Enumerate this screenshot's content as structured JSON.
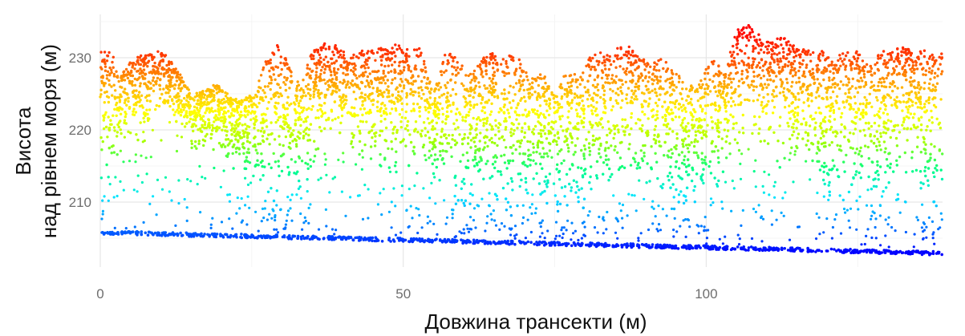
{
  "chart_data": {
    "type": "scatter",
    "title": "",
    "xlabel": "Довжина трансекти (м)",
    "ylabel_lines": [
      "Висота",
      "над рівнем моря (м)"
    ],
    "xlim": [
      0,
      139
    ],
    "ylim": [
      201,
      236
    ],
    "x_ticks": [
      0,
      50,
      100
    ],
    "y_ticks": [
      210,
      220,
      230
    ],
    "grid": true,
    "legend": "none",
    "colormap": [
      "#0000ff",
      "#0080ff",
      "#00e5ff",
      "#00ff80",
      "#aaff00",
      "#ffff00",
      "#ffaa00",
      "#ff4000",
      "#ff0000"
    ],
    "color_range": [
      203,
      234
    ],
    "ground": {
      "x": [
        0,
        139
      ],
      "y": [
        205.8,
        202.9
      ]
    },
    "canopy_top": {
      "x": [
        0,
        2,
        3,
        5,
        7,
        9,
        11,
        13,
        15,
        17,
        19,
        21,
        23,
        25,
        27,
        29,
        31,
        33,
        35,
        37,
        39,
        41,
        43,
        45,
        47,
        49,
        51,
        53,
        55,
        57,
        59,
        61,
        63,
        65,
        67,
        69,
        71,
        73,
        75,
        77,
        79,
        81,
        83,
        85,
        87,
        89,
        91,
        93,
        95,
        97,
        99,
        101,
        103,
        105,
        107,
        109,
        111,
        113,
        115,
        117,
        119,
        121,
        123,
        125,
        127,
        129,
        131,
        133,
        135,
        137,
        139
      ],
      "y": [
        231.5,
        231,
        227,
        229.5,
        230.5,
        231,
        230.5,
        228,
        225,
        225.5,
        226.5,
        225,
        224,
        225,
        229,
        232,
        230,
        226,
        231,
        232,
        232,
        230,
        231,
        231,
        231.5,
        232,
        231,
        231.5,
        225,
        231,
        230,
        228,
        230,
        231,
        230.5,
        230,
        227,
        228,
        225,
        229,
        227,
        230.5,
        231,
        231.5,
        232,
        230,
        229.5,
        230,
        228,
        226,
        227,
        230,
        228,
        234,
        234.5,
        233,
        232.5,
        233,
        231.5,
        231,
        231,
        230,
        231,
        231,
        229,
        231,
        231.5,
        231.5,
        231,
        231,
        230.5
      ]
    },
    "canopy_base": {
      "x": [
        0,
        2,
        4,
        6,
        8,
        10,
        12,
        14,
        16,
        18,
        20,
        22,
        24,
        26,
        28,
        30,
        32,
        34,
        36,
        38,
        40,
        42,
        44,
        46,
        48,
        50,
        52,
        54,
        56,
        58,
        60,
        62,
        64,
        66,
        68,
        70,
        72,
        74,
        76,
        78,
        80,
        82,
        84,
        86,
        88,
        90,
        92,
        94,
        96,
        98,
        100,
        102,
        104,
        106,
        108,
        110,
        112,
        114,
        116,
        118,
        120,
        122,
        124,
        126,
        128,
        130,
        132,
        134,
        136,
        138
      ],
      "y": [
        210,
        213,
        220,
        218,
        221,
        222,
        221,
        219,
        216,
        218,
        216,
        214,
        213,
        211,
        209,
        210,
        212,
        211,
        215,
        218,
        219,
        217,
        216,
        215,
        214,
        212,
        213,
        215,
        212,
        209,
        206,
        210,
        212,
        207,
        206,
        210,
        211,
        208,
        206,
        210,
        208,
        211,
        213,
        210,
        214,
        212,
        209,
        210,
        207,
        208,
        209,
        212,
        215,
        217,
        218,
        216,
        214,
        217,
        216,
        213,
        210,
        208,
        210,
        212,
        210,
        211,
        212,
        214,
        209,
        208
      ]
    },
    "point_count": 5200,
    "annotations": []
  }
}
